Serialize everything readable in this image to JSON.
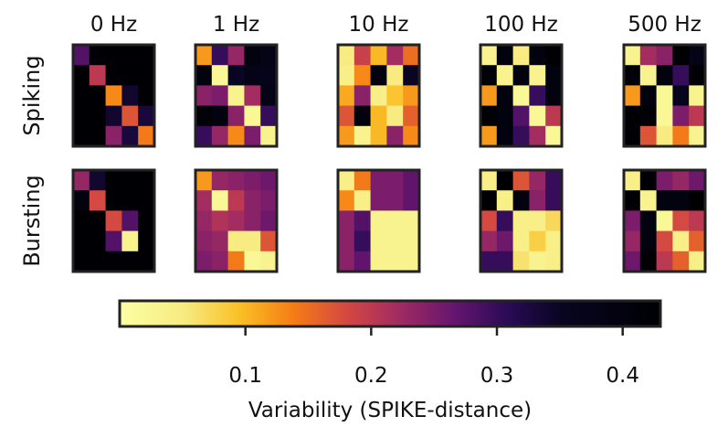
{
  "chart_data": {
    "type": "heatmap",
    "columns": [
      "0 Hz",
      "1 Hz",
      "10 Hz",
      "100 Hz",
      "500 Hz"
    ],
    "rows": [
      "Spiking",
      "Bursting"
    ],
    "matrix_size": 5,
    "colormap": "inferno (reversed)",
    "colorbar": {
      "label": "Variability (SPIKE-distance)",
      "range": [
        0.0,
        0.43
      ],
      "ticks": [
        0.1,
        0.2,
        0.3,
        0.4
      ],
      "tick_labels": [
        "0.1",
        "0.2",
        "0.3",
        "0.4"
      ]
    },
    "matrices": {
      "Spiking": {
        "0 Hz": [
          [
            0.28,
            0.43,
            0.43,
            0.43,
            0.43
          ],
          [
            0.43,
            0.2,
            0.43,
            0.43,
            0.43
          ],
          [
            0.43,
            0.43,
            0.13,
            0.34,
            0.43
          ],
          [
            0.43,
            0.43,
            0.34,
            0.17,
            0.33
          ],
          [
            0.43,
            0.43,
            0.24,
            0.33,
            0.14
          ]
        ],
        "1 Hz": [
          [
            0.12,
            0.3,
            0.23,
            0.4,
            0.38
          ],
          [
            0.4,
            0.02,
            0.35,
            0.38,
            0.37
          ],
          [
            0.24,
            0.25,
            0.03,
            0.22,
            0.38
          ],
          [
            0.42,
            0.4,
            0.24,
            0.02,
            0.3
          ],
          [
            0.3,
            0.23,
            0.13,
            0.25,
            0.03
          ]
        ],
        "10 Hz": [
          [
            0.05,
            0.19,
            0.1,
            0.22,
            0.15
          ],
          [
            0.04,
            0.13,
            0.4,
            0.05,
            0.35
          ],
          [
            0.11,
            0.24,
            0.04,
            0.09,
            0.12
          ],
          [
            0.17,
            0.4,
            0.1,
            0.05,
            0.16
          ],
          [
            0.12,
            0.03,
            0.1,
            0.24,
            0.13
          ]
        ],
        "100 Hz": [
          [
            0.03,
            0.4,
            0.05,
            0.4,
            0.43
          ],
          [
            0.42,
            0.03,
            0.4,
            0.03,
            0.4
          ],
          [
            0.12,
            0.4,
            0.02,
            0.3,
            0.4
          ],
          [
            0.42,
            0.4,
            0.28,
            0.02,
            0.2
          ],
          [
            0.12,
            0.4,
            0.3,
            0.22,
            0.02
          ]
        ],
        "500 Hz": [
          [
            0.03,
            0.22,
            0.24,
            0.43,
            0.38
          ],
          [
            0.42,
            0.03,
            0.4,
            0.3,
            0.43
          ],
          [
            0.12,
            0.4,
            0.02,
            0.36,
            0.03
          ],
          [
            0.43,
            0.42,
            0.02,
            0.25,
            0.2
          ],
          [
            0.43,
            0.17,
            0.05,
            0.14,
            0.03
          ]
        ]
      },
      "Bursting": {
        "0 Hz": [
          [
            0.23,
            0.34,
            0.43,
            0.43,
            0.43
          ],
          [
            0.4,
            0.18,
            0.43,
            0.43,
            0.43
          ],
          [
            0.43,
            0.43,
            0.18,
            0.28,
            0.43
          ],
          [
            0.43,
            0.43,
            0.28,
            0.03,
            0.43
          ],
          [
            0.43,
            0.43,
            0.43,
            0.43,
            0.43
          ]
        ],
        "1 Hz": [
          [
            0.12,
            0.23,
            0.24,
            0.25,
            0.26
          ],
          [
            0.22,
            0.02,
            0.2,
            0.24,
            0.25
          ],
          [
            0.23,
            0.21,
            0.22,
            0.24,
            0.26
          ],
          [
            0.24,
            0.23,
            0.05,
            0.05,
            0.17
          ],
          [
            0.25,
            0.24,
            0.14,
            0.02,
            0.03
          ]
        ],
        "10 Hz": [
          [
            0.04,
            0.14,
            0.25,
            0.25,
            0.27
          ],
          [
            0.13,
            0.04,
            0.25,
            0.25,
            0.27
          ],
          [
            0.24,
            0.28,
            0.03,
            0.03,
            0.03
          ],
          [
            0.24,
            0.3,
            0.03,
            0.03,
            0.03
          ],
          [
            0.24,
            0.27,
            0.03,
            0.03,
            0.03
          ]
        ],
        "100 Hz": [
          [
            0.04,
            0.43,
            0.17,
            0.23,
            0.3
          ],
          [
            0.43,
            0.04,
            0.4,
            0.24,
            0.3
          ],
          [
            0.18,
            0.3,
            0.04,
            0.04,
            0.07
          ],
          [
            0.23,
            0.26,
            0.04,
            0.08,
            0.04
          ],
          [
            0.3,
            0.3,
            0.06,
            0.03,
            0.04
          ]
        ],
        "500 Hz": [
          [
            0.04,
            0.43,
            0.25,
            0.23,
            0.26
          ],
          [
            0.43,
            0.03,
            0.4,
            0.4,
            0.43
          ],
          [
            0.25,
            0.4,
            0.02,
            0.18,
            0.2
          ],
          [
            0.23,
            0.4,
            0.18,
            0.04,
            0.16
          ],
          [
            0.26,
            0.43,
            0.2,
            0.16,
            0.04
          ]
        ]
      }
    }
  }
}
